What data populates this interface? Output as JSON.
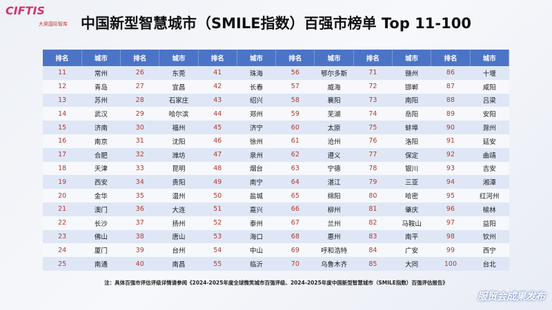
{
  "logo": {
    "text": "CIFTIS",
    "partner": "大昊国际智库"
  },
  "header": {
    "title": "中国新型智慧城市（SMILE指数）百强市榜单 Top 11-100"
  },
  "table": {
    "columns": [
      "排名",
      "城市",
      "排名",
      "城市",
      "排名",
      "城市",
      "排名",
      "城市",
      "排名",
      "城市",
      "排名",
      "城市"
    ],
    "rows": [
      [
        11,
        "常州",
        26,
        "东莞",
        41,
        "珠海",
        56,
        "鄂尔多斯",
        71,
        "赣州",
        86,
        "十堰"
      ],
      [
        12,
        "青岛",
        27,
        "宜昌",
        42,
        "长春",
        57,
        "威海",
        72,
        "邯郸",
        87,
        "咸阳"
      ],
      [
        13,
        "苏州",
        28,
        "石家庄",
        43,
        "绍兴",
        58,
        "襄阳",
        73,
        "南阳",
        88,
        "吕梁"
      ],
      [
        14,
        "武汉",
        29,
        "哈尔滨",
        44,
        "郑州",
        59,
        "芜湖",
        74,
        "岳阳",
        89,
        "安阳"
      ],
      [
        15,
        "济南",
        30,
        "福州",
        45,
        "济宁",
        60,
        "太原",
        75,
        "蚌埠",
        90,
        "滁州"
      ],
      [
        16,
        "南京",
        31,
        "沈阳",
        46,
        "徐州",
        61,
        "沧州",
        76,
        "洛阳",
        91,
        "延安"
      ],
      [
        17,
        "合肥",
        32,
        "潍坊",
        47,
        "泉州",
        62,
        "遵义",
        77,
        "保定",
        92,
        "曲靖"
      ],
      [
        18,
        "天津",
        33,
        "昆明",
        48,
        "烟台",
        63,
        "宁德",
        78,
        "银川",
        93,
        "吉安"
      ],
      [
        19,
        "西安",
        34,
        "贵阳",
        49,
        "南宁",
        64,
        "湛江",
        79,
        "三亚",
        94,
        "湘潭"
      ],
      [
        20,
        "金华",
        35,
        "温州",
        50,
        "盐城",
        65,
        "绵阳",
        80,
        "哈密",
        95,
        "红河州"
      ],
      [
        21,
        "澳门",
        36,
        "大连",
        51,
        "嘉兴",
        66,
        "柳州",
        81,
        "肇庆",
        96,
        "榆林"
      ],
      [
        22,
        "长沙",
        37,
        "扬州",
        52,
        "泰州",
        67,
        "兰州",
        82,
        "马鞍山",
        97,
        "益阳"
      ],
      [
        23,
        "佛山",
        38,
        "唐山",
        53,
        "海口",
        68,
        "惠州",
        83,
        "南平",
        98,
        "钦州"
      ],
      [
        24,
        "厦门",
        39,
        "台州",
        54,
        "中山",
        69,
        "呼和浩特",
        84,
        "广安",
        99,
        "西宁"
      ],
      [
        25,
        "南通",
        40,
        "南昌",
        55,
        "临沂",
        70,
        "乌鲁木齐",
        85,
        "大同",
        100,
        "台北"
      ]
    ]
  },
  "footer": {
    "note": "注：具体百强市评估评级详情请参阅《2024-2025年度全球微笑城市百强评级、2024-2025年度中国新型智慧城市（SMILE指数）百强评估报告》",
    "badge": "服贸会成果发布"
  }
}
